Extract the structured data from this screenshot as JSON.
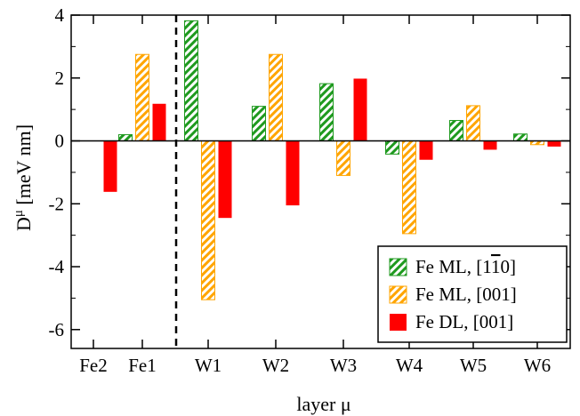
{
  "chart_data": {
    "type": "bar",
    "title": "",
    "xlabel": "layer μ",
    "ylabel": {
      "base": "D",
      "sup": "μ",
      "rest": " [meV nm]"
    },
    "categories": [
      "Fe2",
      "Fe1",
      "W1",
      "W2",
      "W3",
      "W4",
      "W5",
      "W6"
    ],
    "ylim": [
      -6.6,
      4
    ],
    "yticks": [
      -6,
      -4,
      -2,
      0,
      2,
      4
    ],
    "ytick_labels": [
      "-6",
      "-4",
      "-2",
      "0",
      "2",
      "4"
    ],
    "grid": false,
    "legend_position": "bottom-right",
    "interface_divider": "dashed vertical line between Fe1 and W1",
    "series": [
      {
        "name": "Fe ML, [1̄0]",
        "legend_parts": [
          "Fe ML, [1",
          "1",
          "0]"
        ],
        "pattern": "hatched",
        "color": "#1f9a1f",
        "values": [
          null,
          0.2,
          3.82,
          1.1,
          1.82,
          -0.42,
          0.65,
          0.22
        ]
      },
      {
        "name": "Fe ML, [001]",
        "legend_parts": [
          "Fe ML, [001]"
        ],
        "pattern": "hatched",
        "color": "#ffa500",
        "values": [
          null,
          2.75,
          -5.05,
          2.75,
          -1.1,
          -2.95,
          1.12,
          -0.12
        ]
      },
      {
        "name": "Fe DL, [001]",
        "legend_parts": [
          "Fe DL, [001]"
        ],
        "pattern": "solid",
        "color": "#ff0000",
        "values": [
          -1.62,
          1.18,
          -2.45,
          -2.05,
          1.98,
          -0.6,
          -0.28,
          -0.18
        ]
      }
    ]
  }
}
